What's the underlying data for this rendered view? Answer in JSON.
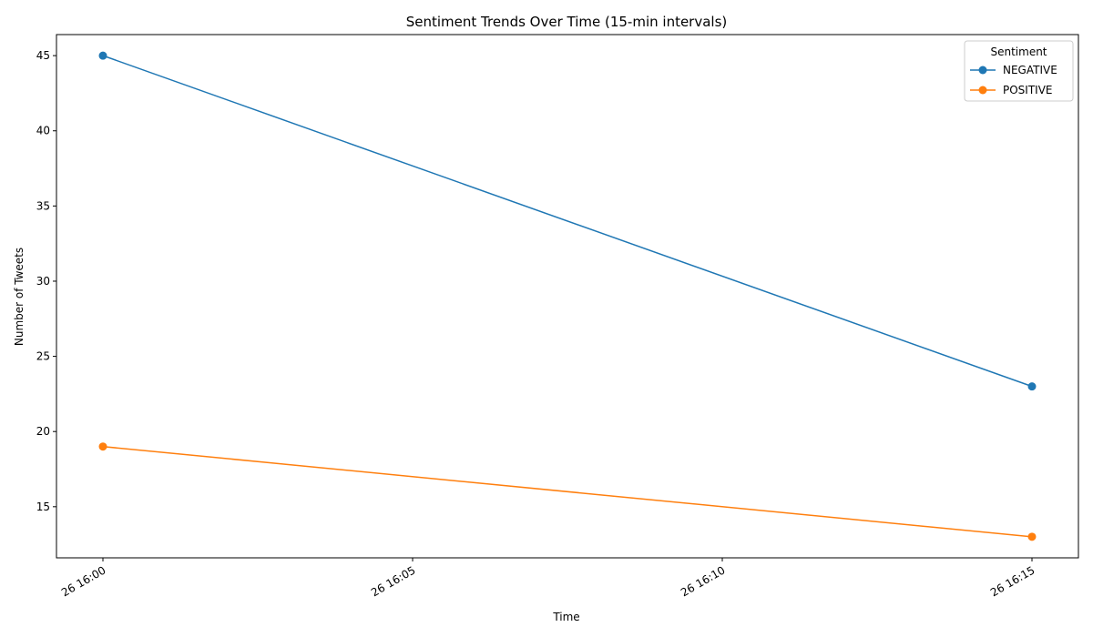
{
  "chart_data": {
    "type": "line",
    "title": "Sentiment Trends Over Time (15-min intervals)",
    "xlabel": "Time",
    "ylabel": "Number of Tweets",
    "x": [
      "26 16:00",
      "26 16:15"
    ],
    "x_minutes": [
      0,
      15
    ],
    "x_ticks": [
      {
        "minute": 0,
        "label": "26 16:00"
      },
      {
        "minute": 5,
        "label": "26 16:05"
      },
      {
        "minute": 10,
        "label": "26 16:10"
      },
      {
        "minute": 15,
        "label": "26 16:15"
      }
    ],
    "xlim_minutes": [
      -0.75,
      15.75
    ],
    "y_ticks": [
      15,
      20,
      25,
      30,
      35,
      40,
      45
    ],
    "ylim": [
      11.6,
      46.4
    ],
    "grid": false,
    "legend": {
      "title": "Sentiment",
      "placement": "top-right"
    },
    "series": [
      {
        "name": "NEGATIVE",
        "color": "#1f77b4",
        "values": [
          45,
          23
        ]
      },
      {
        "name": "POSITIVE",
        "color": "#ff7f0e",
        "values": [
          19,
          13
        ]
      }
    ]
  }
}
